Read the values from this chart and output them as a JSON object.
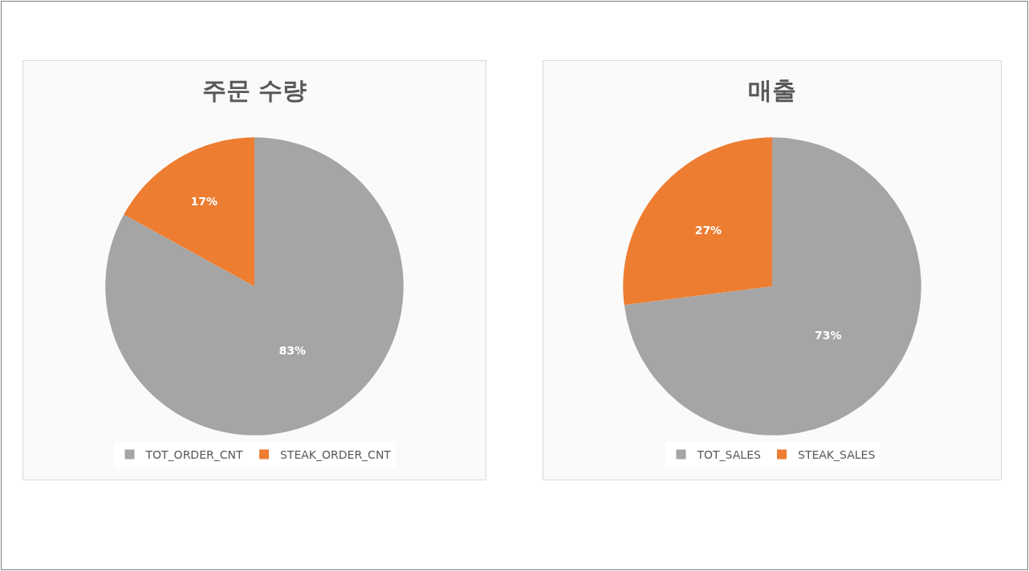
{
  "chart_data": [
    {
      "type": "pie",
      "title": "주문 수량",
      "categories": [
        "TOT_ORDER_CNT",
        "STEAK_ORDER_CNT"
      ],
      "values": [
        83,
        17
      ],
      "colors": [
        "#a5a5a5",
        "#ed7d31"
      ],
      "value_labels": [
        "83%",
        "17%"
      ],
      "legend": "bottom"
    },
    {
      "type": "pie",
      "title": "매출",
      "categories": [
        "TOT_SALES",
        "STEAK_SALES"
      ],
      "values": [
        73,
        27
      ],
      "colors": [
        "#a5a5a5",
        "#ed7d31"
      ],
      "value_labels": [
        "73%",
        "27%"
      ],
      "legend": "bottom"
    }
  ]
}
